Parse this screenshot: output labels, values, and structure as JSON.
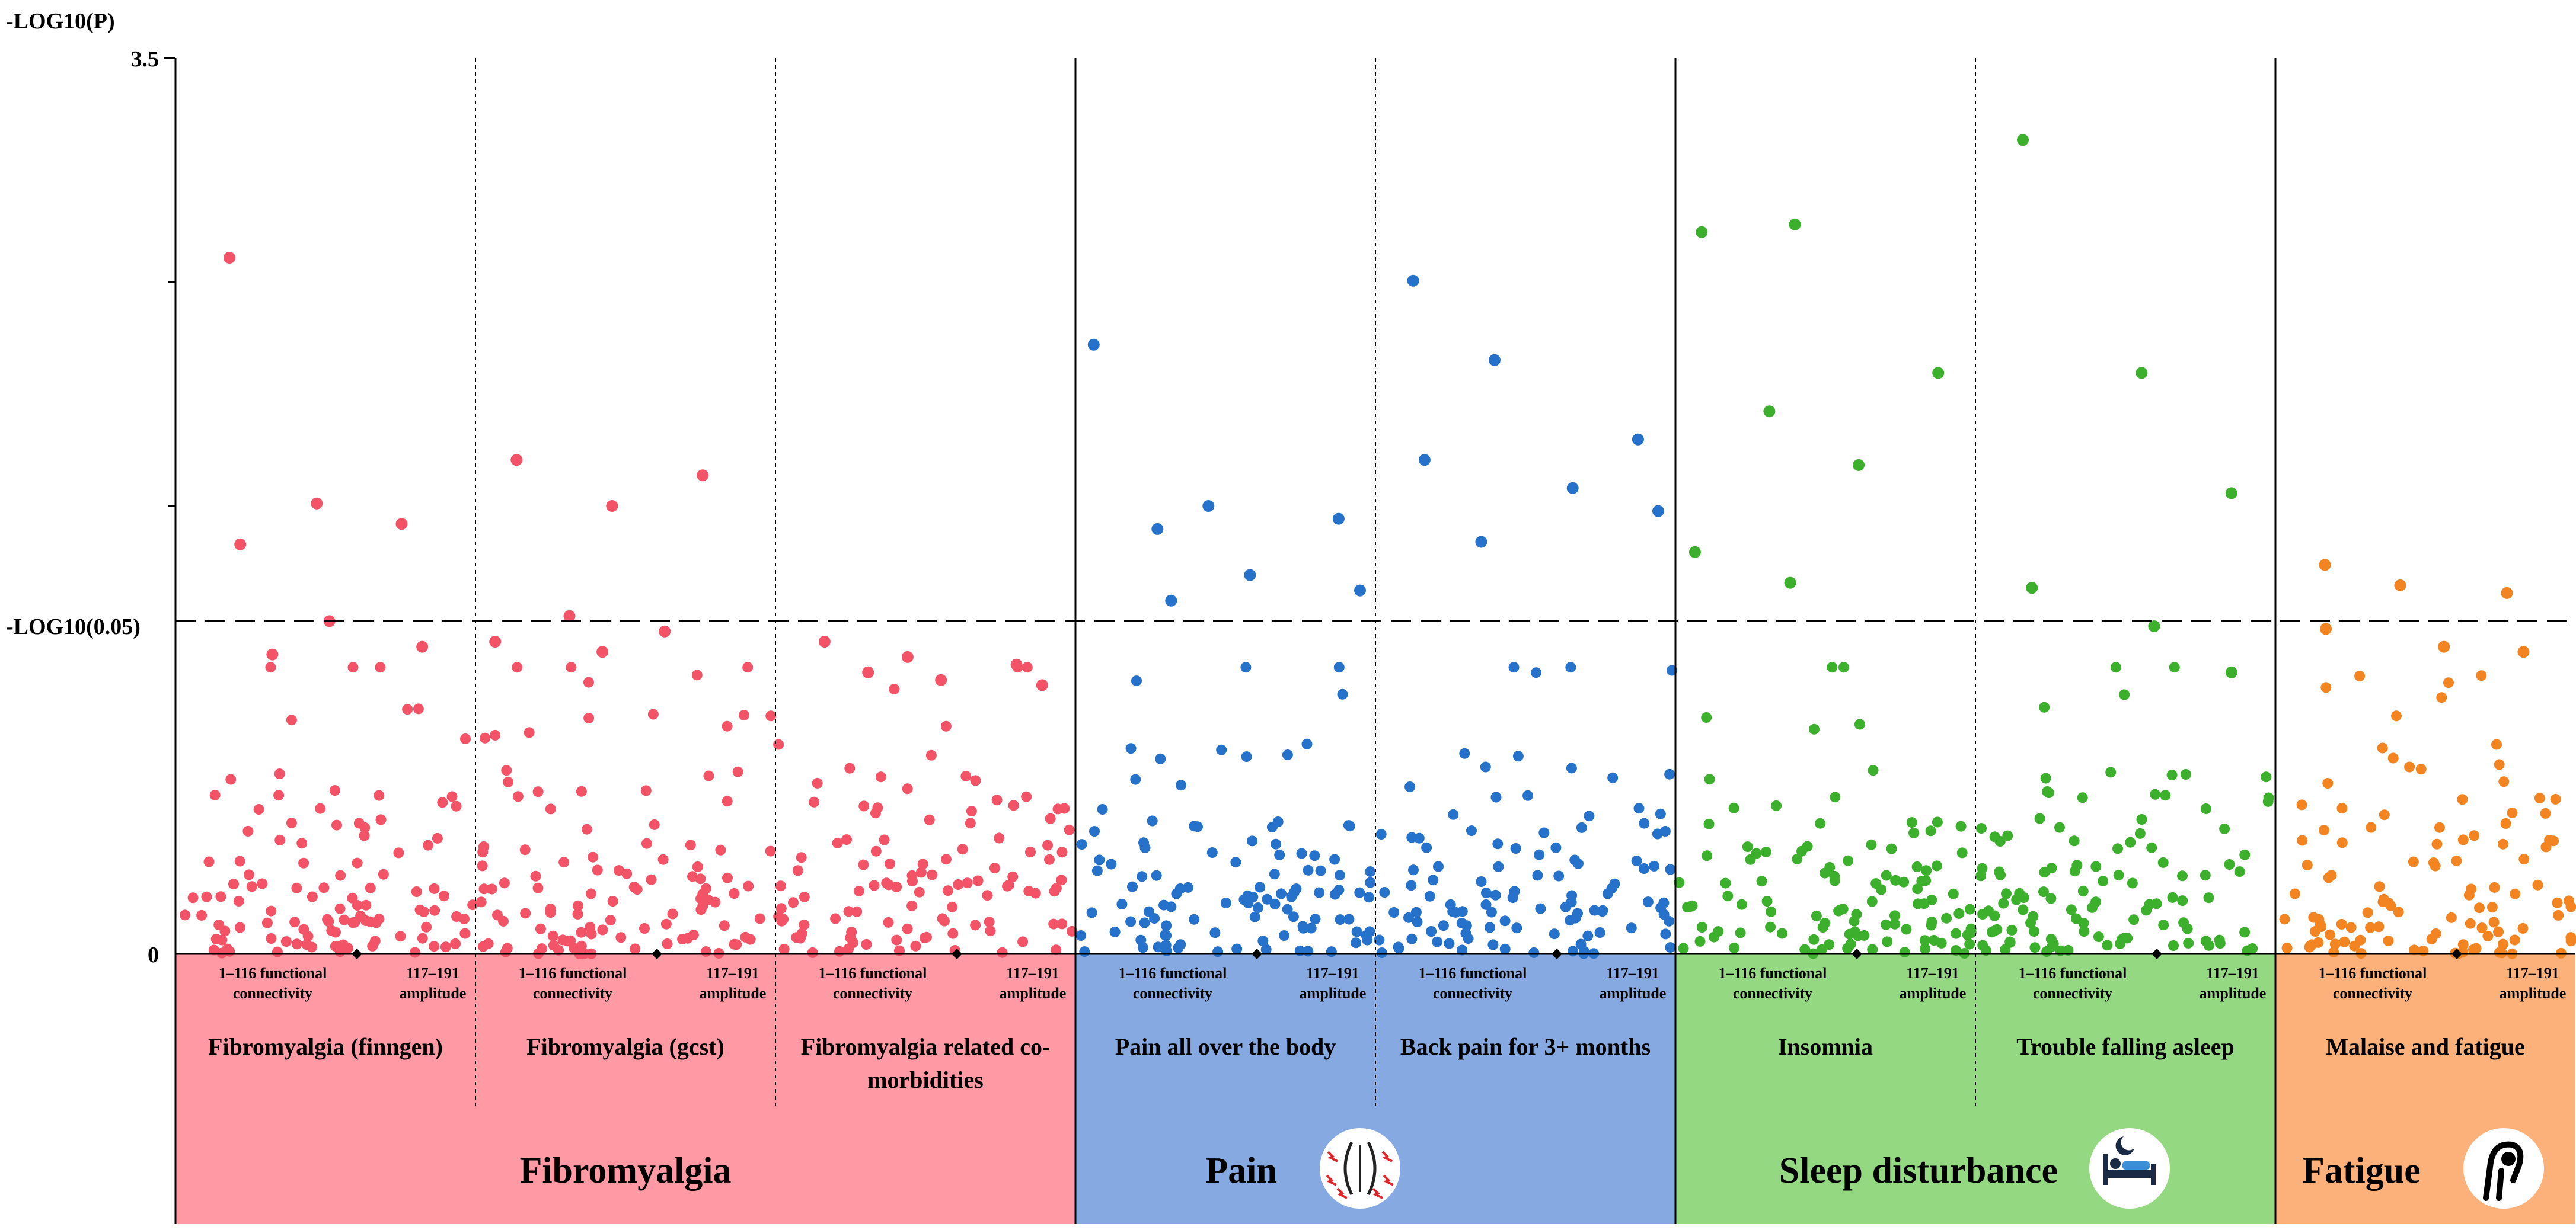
{
  "chart_data": {
    "type": "scatter",
    "subtype": "manhattan",
    "ylabel": "-LOG10(P)",
    "ylim": [
      0,
      3.5
    ],
    "yticks": [
      {
        "value": 3.5,
        "label": "3.5"
      },
      {
        "value": 0,
        "label": "0"
      }
    ],
    "threshold": {
      "value": 1.30103,
      "label": "-LOG10(0.05)"
    },
    "xtick_labels": {
      "functional_line1": "1–116 functional",
      "functional_line2": "connectivity",
      "amplitude_line1": "117–191",
      "amplitude_line2": "amplitude"
    },
    "panels": [
      {
        "name": "Fibromyalgia (finngen)",
        "group": "Fibromyalgia",
        "peaks": [
          2.72,
          1.76,
          1.68,
          1.6,
          1.3,
          1.2,
          1.17
        ]
      },
      {
        "name": "Fibromyalgia (gcst)",
        "group": "Fibromyalgia",
        "peaks": [
          1.93,
          1.75,
          1.87,
          1.32,
          1.26,
          1.22,
          1.18
        ]
      },
      {
        "name": "Fibromyalgia related co-morbidities",
        "group": "Fibromyalgia",
        "peaks": [
          1.22,
          1.16,
          1.13,
          1.1,
          1.07,
          1.05
        ]
      },
      {
        "name": "Pain all over the body",
        "group": "Pain",
        "peaks": [
          2.38,
          1.75,
          1.7,
          1.66,
          1.48,
          1.42,
          1.38
        ]
      },
      {
        "name": "Back pain for 3+ months",
        "group": "Pain",
        "peaks": [
          2.63,
          2.32,
          2.01,
          1.93,
          1.82,
          1.73,
          1.61
        ]
      },
      {
        "name": "Insomnia",
        "group": "Sleep disturbance",
        "peaks": [
          2.82,
          2.85,
          2.27,
          2.12,
          1.91,
          1.57,
          1.45
        ]
      },
      {
        "name": "Trouble falling asleep",
        "group": "Sleep disturbance",
        "peaks": [
          3.18,
          2.27,
          1.8,
          1.43,
          1.28,
          1.1
        ]
      },
      {
        "name": "Malaise and fatigue",
        "group": "Fatigue",
        "peaks": [
          1.52,
          1.44,
          1.41,
          1.27,
          1.2,
          1.18
        ]
      }
    ],
    "groups": [
      {
        "name": "Fibromyalgia",
        "color": "#f25366",
        "band": "#ff99a3",
        "icon": ""
      },
      {
        "name": "Pain",
        "color": "#2671c9",
        "band": "#85a9e0",
        "icon": "pain-body-icon"
      },
      {
        "name": "Sleep disturbance",
        "color": "#3cb02c",
        "band": "#95d882",
        "icon": "sleep-bed-icon"
      },
      {
        "name": "Fatigue",
        "color": "#f28522",
        "band": "#fcb17a",
        "icon": "fatigue-person-icon"
      }
    ]
  }
}
